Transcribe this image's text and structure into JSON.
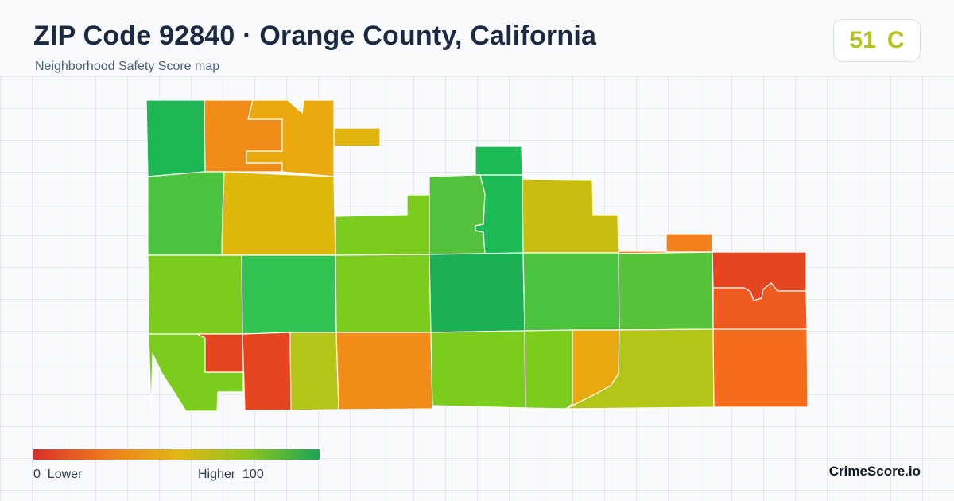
{
  "header": {
    "title": "ZIP Code 92840 · Orange County, California",
    "subtitle": "Neighborhood Safety Score map"
  },
  "score": {
    "value": "51",
    "grade": "C",
    "color": "#b6c21d"
  },
  "legend": {
    "min_value": "0",
    "min_label": "Lower",
    "max_label": "Higher",
    "max_value": "100",
    "gradient_colors": [
      "#d9302a",
      "#ef7a1e",
      "#e4b615",
      "#8fc51f",
      "#1aa653"
    ]
  },
  "brand": "CrimeScore.io",
  "map": {
    "tract_colors": {
      "nw_forest": "#1eb554",
      "n_orange": "#f08c17",
      "n_amber": "#eaa80f",
      "n_notch_amber": "#e0b60e",
      "w_green": "#4cc33e",
      "n_mustard": "#e0b80c",
      "c_lime_north": "#7ccc1e",
      "n_green_strip": "#55c23d",
      "top_green_tab": "#1dbb55",
      "n_green_strip_east": "#1dbb55",
      "ne_olive": "#c8be12",
      "ne_orange_tab": "#f4801c",
      "w_lime": "#7ccc1e",
      "c_green_west": "#32c452",
      "c_lime": "#7ccc1e",
      "c_forest": "#1bb054",
      "c_green_east": "#4cc33e",
      "e_green": "#56c33a",
      "e_red": "#e5461f",
      "sw_lime": "#7ccc1e",
      "sw_red_small": "#e5461f",
      "sw_red": "#e5461f",
      "s_olive": "#b3c517",
      "s_orange": "#f08c17",
      "s_lime": "#7ccc1e",
      "s_lime_east": "#7ccc1e",
      "s_amber": "#eaa80f",
      "s_olive_east": "#b3c517",
      "se_orange": "#f46c1c",
      "e_orange_red": "#ee5a1f"
    }
  }
}
